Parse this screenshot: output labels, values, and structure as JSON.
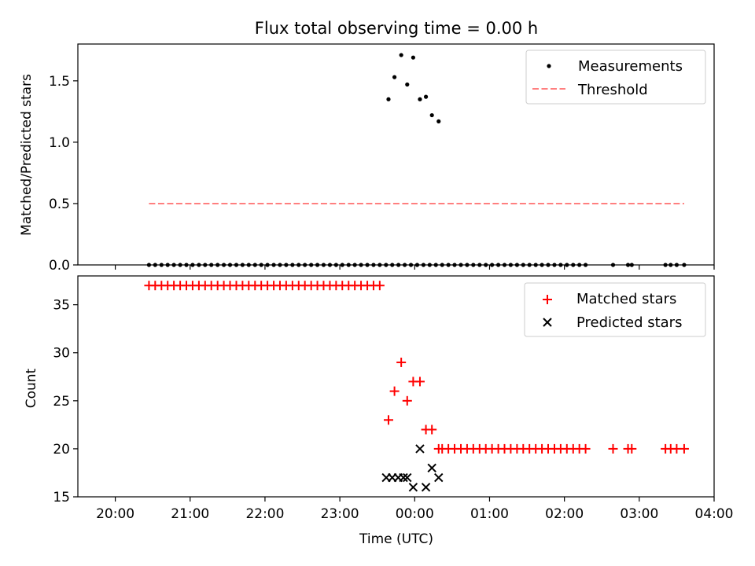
{
  "chart_data": [
    {
      "type": "scatter",
      "title": "Flux total observing time = 0.00 h",
      "xlabel": "",
      "ylabel": "Matched/Predicted stars",
      "xlim": [
        -4.5,
        4.0
      ],
      "ylim": [
        0,
        1.8
      ],
      "x_ticks": [
        -4,
        -3,
        -2,
        -1,
        0,
        1,
        2,
        3,
        4
      ],
      "x_tick_labels": [
        "",
        "",
        "",
        "",
        "",
        "",
        "",
        "",
        ""
      ],
      "y_ticks": [
        0.0,
        0.5,
        1.0,
        1.5
      ],
      "y_tick_labels": [
        "0.0",
        "0.5",
        "1.0",
        "1.5"
      ],
      "legend_position": "top-right",
      "series": [
        {
          "name": "Measurements",
          "marker": "dot",
          "color": "#000000",
          "x": [
            -3.55,
            -3.467,
            -3.383,
            -3.3,
            -3.217,
            -3.133,
            -3.05,
            -2.967,
            -2.883,
            -2.8,
            -2.717,
            -2.633,
            -2.55,
            -2.467,
            -2.383,
            -2.3,
            -2.217,
            -2.133,
            -2.05,
            -1.967,
            -1.883,
            -1.8,
            -1.717,
            -1.633,
            -1.55,
            -1.467,
            -1.383,
            -1.3,
            -1.217,
            -1.133,
            -1.05,
            -0.967,
            -0.883,
            -0.8,
            -0.717,
            -0.633,
            -0.55,
            -0.467,
            -0.383,
            -0.3,
            -0.217,
            -0.133,
            -0.05,
            0.033,
            0.117,
            0.2,
            0.283,
            0.367,
            0.45,
            0.533,
            0.617,
            0.7,
            0.783,
            0.867,
            0.95,
            1.033,
            1.117,
            1.2,
            1.283,
            1.367,
            1.45,
            1.533,
            1.617,
            1.7,
            1.783,
            1.867,
            1.95,
            2.033,
            2.117,
            2.2,
            2.283,
            2.65,
            2.85,
            2.9,
            3.35,
            3.42,
            3.5,
            3.6,
            -0.35,
            -0.27,
            -0.18,
            -0.1,
            -0.02,
            0.07,
            0.15,
            0.23,
            0.32
          ],
          "y": [
            0,
            0,
            0,
            0,
            0,
            0,
            0,
            0,
            0,
            0,
            0,
            0,
            0,
            0,
            0,
            0,
            0,
            0,
            0,
            0,
            0,
            0,
            0,
            0,
            0,
            0,
            0,
            0,
            0,
            0,
            0,
            0,
            0,
            0,
            0,
            0,
            0,
            0,
            0,
            0,
            0,
            0,
            0,
            0,
            0,
            0,
            0,
            0,
            0,
            0,
            0,
            0,
            0,
            0,
            0,
            0,
            0,
            0,
            0,
            0,
            0,
            0,
            0,
            0,
            0,
            0,
            0,
            0,
            0,
            0,
            0,
            0,
            0,
            0,
            0,
            0,
            0,
            0,
            1.35,
            1.53,
            1.71,
            1.47,
            1.69,
            1.35,
            1.37,
            1.22,
            1.17
          ]
        },
        {
          "name": "Threshold",
          "marker": "dashed-line",
          "color": "#ff7f7f",
          "x": [
            -3.55,
            3.6
          ],
          "y": [
            0.5,
            0.5
          ]
        }
      ]
    },
    {
      "type": "scatter",
      "title": "",
      "xlabel": "Time (UTC)",
      "ylabel": "Count",
      "xlim": [
        -4.5,
        4.0
      ],
      "ylim": [
        15,
        38
      ],
      "x_ticks": [
        -4,
        -3,
        -2,
        -1,
        0,
        1,
        2,
        3,
        4
      ],
      "x_tick_labels": [
        "20:00",
        "21:00",
        "22:00",
        "23:00",
        "00:00",
        "01:00",
        "02:00",
        "03:00",
        "04:00"
      ],
      "y_ticks": [
        15,
        20,
        25,
        30,
        35
      ],
      "y_tick_labels": [
        "15",
        "20",
        "25",
        "30",
        "35"
      ],
      "legend_position": "top-right",
      "series": [
        {
          "name": "Matched stars",
          "marker": "plus",
          "color": "#ff0000",
          "x": [
            -3.55,
            -3.467,
            -3.383,
            -3.3,
            -3.217,
            -3.133,
            -3.05,
            -2.967,
            -2.883,
            -2.8,
            -2.717,
            -2.633,
            -2.55,
            -2.467,
            -2.383,
            -2.3,
            -2.217,
            -2.133,
            -2.05,
            -1.967,
            -1.883,
            -1.8,
            -1.717,
            -1.633,
            -1.55,
            -1.467,
            -1.383,
            -1.3,
            -1.217,
            -1.133,
            -1.05,
            -0.967,
            -0.883,
            -0.8,
            -0.717,
            -0.633,
            -0.55,
            -0.467,
            -0.35,
            -0.27,
            -0.18,
            -0.1,
            -0.02,
            0.07,
            0.15,
            0.23,
            0.32,
            0.367,
            0.45,
            0.533,
            0.617,
            0.7,
            0.783,
            0.867,
            0.95,
            1.033,
            1.117,
            1.2,
            1.283,
            1.367,
            1.45,
            1.533,
            1.617,
            1.7,
            1.783,
            1.867,
            1.95,
            2.033,
            2.117,
            2.2,
            2.283,
            2.65,
            2.85,
            2.9,
            3.35,
            3.42,
            3.5,
            3.6
          ],
          "y": [
            37,
            37,
            37,
            37,
            37,
            37,
            37,
            37,
            37,
            37,
            37,
            37,
            37,
            37,
            37,
            37,
            37,
            37,
            37,
            37,
            37,
            37,
            37,
            37,
            37,
            37,
            37,
            37,
            37,
            37,
            37,
            37,
            37,
            37,
            37,
            37,
            37,
            37,
            23,
            26,
            29,
            25,
            27,
            27,
            22,
            22,
            20,
            20,
            20,
            20,
            20,
            20,
            20,
            20,
            20,
            20,
            20,
            20,
            20,
            20,
            20,
            20,
            20,
            20,
            20,
            20,
            20,
            20,
            20,
            20,
            20,
            20,
            20,
            20,
            20,
            20,
            20,
            20
          ]
        },
        {
          "name": "Predicted stars",
          "marker": "x",
          "color": "#000000",
          "x": [
            -0.38,
            -0.3,
            -0.22,
            -0.15,
            -0.1,
            -0.02,
            0.07,
            0.15,
            0.23,
            0.32
          ],
          "y": [
            17,
            17,
            17,
            17,
            17,
            16,
            20,
            16,
            18,
            17
          ]
        }
      ]
    }
  ]
}
